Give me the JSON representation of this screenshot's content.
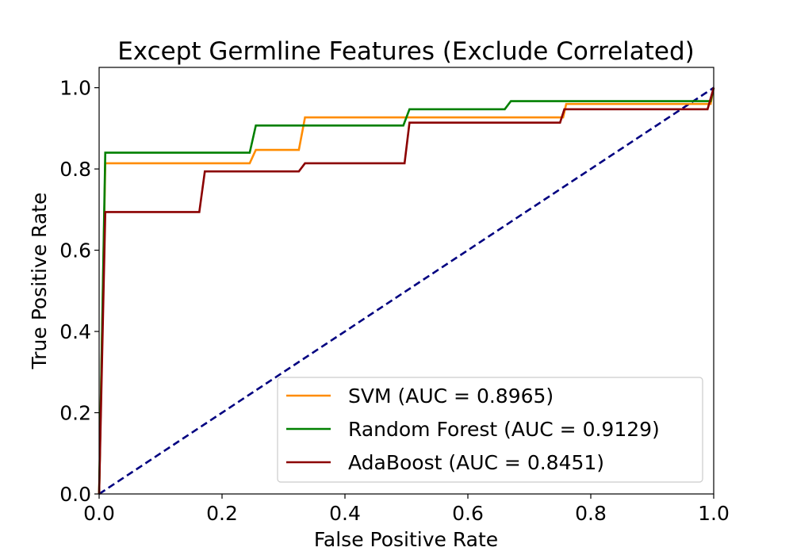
{
  "chart_data": {
    "type": "line",
    "title": "Except Germline Features (Exclude Correlated)",
    "xlabel": "False Positive Rate",
    "ylabel": "True Positive Rate",
    "xlim": [
      0.0,
      1.0
    ],
    "ylim": [
      0.0,
      1.05
    ],
    "xticks": [
      0.0,
      0.2,
      0.4,
      0.6,
      0.8,
      1.0
    ],
    "yticks": [
      0.0,
      0.2,
      0.4,
      0.6,
      0.8,
      1.0
    ],
    "tick_labels_x": [
      "0.0",
      "0.2",
      "0.4",
      "0.6",
      "0.8",
      "1.0"
    ],
    "tick_labels_y": [
      "0.0",
      "0.2",
      "0.4",
      "0.6",
      "0.8",
      "1.0"
    ],
    "grid": false,
    "legend_position": "lower-right",
    "series": [
      {
        "name": "SVM (AUC = 0.8965)",
        "color": "#ff8c00",
        "points": [
          [
            0.0,
            0.0
          ],
          [
            0.01,
            0.814
          ],
          [
            0.245,
            0.814
          ],
          [
            0.255,
            0.847
          ],
          [
            0.325,
            0.847
          ],
          [
            0.335,
            0.927
          ],
          [
            0.755,
            0.927
          ],
          [
            0.76,
            0.96
          ],
          [
            0.995,
            0.96
          ],
          [
            1.0,
            1.0
          ]
        ]
      },
      {
        "name": "Random Forest (AUC = 0.9129)",
        "color": "#008000",
        "points": [
          [
            0.0,
            0.0
          ],
          [
            0.01,
            0.84
          ],
          [
            0.245,
            0.84
          ],
          [
            0.255,
            0.907
          ],
          [
            0.495,
            0.907
          ],
          [
            0.505,
            0.947
          ],
          [
            0.66,
            0.947
          ],
          [
            0.67,
            0.967
          ],
          [
            0.995,
            0.967
          ],
          [
            1.0,
            1.0
          ]
        ]
      },
      {
        "name": "AdaBoost (AUC = 0.8451)",
        "color": "#8b0000",
        "points": [
          [
            0.0,
            0.0
          ],
          [
            0.01,
            0.694
          ],
          [
            0.163,
            0.694
          ],
          [
            0.172,
            0.794
          ],
          [
            0.325,
            0.794
          ],
          [
            0.335,
            0.814
          ],
          [
            0.497,
            0.814
          ],
          [
            0.505,
            0.914
          ],
          [
            0.75,
            0.914
          ],
          [
            0.757,
            0.947
          ],
          [
            0.99,
            0.947
          ],
          [
            1.0,
            1.0
          ]
        ]
      }
    ],
    "reference_line": {
      "color": "#000080",
      "style": "dashed",
      "points": [
        [
          0.0,
          0.0
        ],
        [
          1.0,
          1.0
        ]
      ]
    }
  }
}
